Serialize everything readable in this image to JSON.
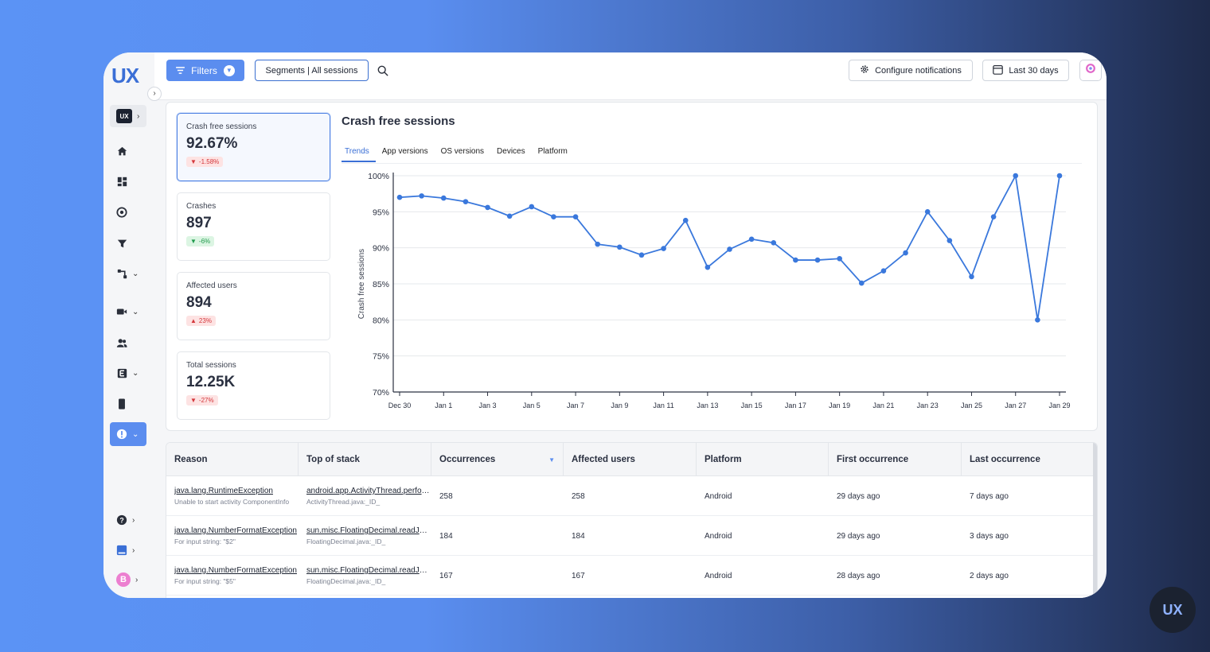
{
  "brand": {
    "logo_text": "UX",
    "corner_logo_text": "UX"
  },
  "colors": {
    "accent": "#5b8def",
    "line": "#3a78dc",
    "negative": "#d4363b",
    "positive": "#1f9a4b"
  },
  "topbar": {
    "filters_label": "Filters",
    "segments_label": "Segments | All sessions",
    "configure_label": "Configure notifications",
    "date_label": "Last 30 days"
  },
  "sidebar": {
    "workspace_label": "UX",
    "avatar_letter": "B",
    "items": [
      {
        "icon": "home-icon"
      },
      {
        "icon": "dashboard-icon"
      },
      {
        "icon": "insights-icon"
      },
      {
        "icon": "funnel-icon"
      },
      {
        "icon": "journeys-icon"
      },
      {
        "icon": "video-icon"
      },
      {
        "icon": "users-icon"
      },
      {
        "icon": "events-icon"
      },
      {
        "icon": "mobile-icon"
      },
      {
        "icon": "crash-alert-icon"
      }
    ]
  },
  "stats": [
    {
      "label": "Crash free sessions",
      "value": "92.67%",
      "change": "-1.58%",
      "direction": "down",
      "tone": "red"
    },
    {
      "label": "Crashes",
      "value": "897",
      "change": "-6%",
      "direction": "down",
      "tone": "green"
    },
    {
      "label": "Affected users",
      "value": "894",
      "change": "23%",
      "direction": "up",
      "tone": "red"
    },
    {
      "label": "Total sessions",
      "value": "12.25K",
      "change": "-27%",
      "direction": "down",
      "tone": "red"
    }
  ],
  "chart_panel": {
    "title": "Crash free sessions",
    "tabs": [
      "Trends",
      "App versions",
      "OS versions",
      "Devices",
      "Platform"
    ],
    "active_tab": "Trends"
  },
  "chart_data": {
    "type": "line",
    "title": "Crash free sessions",
    "ylabel": "Crash free sessions",
    "xlabel": "",
    "ylim": [
      70,
      100
    ],
    "yticks": [
      "100%",
      "95%",
      "90%",
      "85%",
      "80%",
      "75%",
      "70%"
    ],
    "xtick_labels": [
      "Dec 30",
      "Jan 1",
      "Jan 3",
      "Jan 5",
      "Jan 7",
      "Jan 9",
      "Jan 11",
      "Jan 13",
      "Jan 15",
      "Jan 17",
      "Jan 19",
      "Jan 21",
      "Jan 23",
      "Jan 25",
      "Jan 27",
      "Jan 29"
    ],
    "x": [
      "Dec 30",
      "Dec 31",
      "Jan 1",
      "Jan 2",
      "Jan 3",
      "Jan 4",
      "Jan 5",
      "Jan 6",
      "Jan 7",
      "Jan 8",
      "Jan 9",
      "Jan 10",
      "Jan 11",
      "Jan 12",
      "Jan 13",
      "Jan 14",
      "Jan 15",
      "Jan 16",
      "Jan 17",
      "Jan 18",
      "Jan 19",
      "Jan 20",
      "Jan 21",
      "Jan 22",
      "Jan 23",
      "Jan 24",
      "Jan 25",
      "Jan 26",
      "Jan 27",
      "Jan 28",
      "Jan 29"
    ],
    "series": [
      {
        "name": "Crash free sessions",
        "values": [
          97.0,
          97.2,
          96.9,
          96.4,
          95.6,
          94.4,
          95.7,
          94.3,
          94.3,
          90.5,
          90.1,
          89.0,
          89.9,
          93.8,
          87.3,
          89.8,
          91.2,
          90.7,
          88.3,
          88.3,
          88.5,
          85.1,
          86.8,
          89.3,
          95.0,
          91.0,
          86.0,
          94.3,
          100.0,
          80.0,
          100.0
        ]
      }
    ],
    "grid": true
  },
  "table": {
    "headers": [
      "Reason",
      "Top of stack",
      "Occurrences",
      "Affected users",
      "Platform",
      "First occurrence",
      "Last occurrence"
    ],
    "rows": [
      {
        "reason": "java.lang.RuntimeException",
        "reason_sub": "Unable to start activity ComponentInfo",
        "stack": "android.app.ActivityThread.performLaunchActivity",
        "stack_sub": "ActivityThread.java:_ID_",
        "occurrences": "258",
        "affected": "258",
        "platform": "Android",
        "first": "29 days ago",
        "last": "7 days ago"
      },
      {
        "reason": "java.lang.NumberFormatException",
        "reason_sub": "For input string: \"$2\"",
        "stack": "sun.misc.FloatingDecimal.readJavaFormatString",
        "stack_sub": "FloatingDecimal.java:_ID_",
        "occurrences": "184",
        "affected": "184",
        "platform": "Android",
        "first": "29 days ago",
        "last": "3 days ago"
      },
      {
        "reason": "java.lang.NumberFormatException",
        "reason_sub": "For input string: \"$5\"",
        "stack": "sun.misc.FloatingDecimal.readJavaFormatString",
        "stack_sub": "FloatingDecimal.java:_ID_",
        "occurrences": "167",
        "affected": "167",
        "platform": "Android",
        "first": "28 days ago",
        "last": "2 days ago"
      }
    ]
  }
}
